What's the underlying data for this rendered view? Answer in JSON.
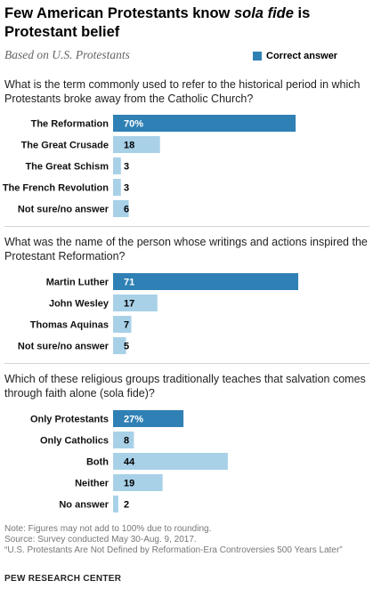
{
  "header": {
    "title_part1": "Few American Protestants know ",
    "title_italic": "sola fide",
    "title_part2": " is Protestant belief",
    "subtitle": "Based on U.S. Protestants",
    "legend_label": "Correct answer"
  },
  "colors": {
    "correct": "#2f80b4",
    "other": "#a8d1e8",
    "value_on_correct": "#ffffff",
    "value_on_other": "#000000"
  },
  "chart_data": [
    {
      "type": "bar",
      "question": "What is the term commonly used to refer to the historical period in which Protestants broke away from the Catholic Church?",
      "categories": [
        "The Reformation",
        "The Great Crusade",
        "The Great Schism",
        "The French Revolution",
        "Not sure/no answer"
      ],
      "values": [
        70,
        18,
        3,
        3,
        6
      ],
      "value_labels": [
        "70%",
        "18",
        "3",
        "3",
        "6"
      ],
      "correct": [
        true,
        false,
        false,
        false,
        false
      ]
    },
    {
      "type": "bar",
      "question": "What was the name of the person whose writings and actions inspired the Protestant Reformation?",
      "categories": [
        "Martin Luther",
        "John Wesley",
        "Thomas Aquinas",
        "Not sure/no answer"
      ],
      "values": [
        71,
        17,
        7,
        5
      ],
      "value_labels": [
        "71",
        "17",
        "7",
        "5"
      ],
      "correct": [
        true,
        false,
        false,
        false
      ]
    },
    {
      "type": "bar",
      "question": "Which of these religious groups traditionally teaches that salvation comes through faith alone (sola fide)?",
      "categories": [
        "Only Protestants",
        "Only Catholics",
        "Both",
        "Neither",
        "No answer"
      ],
      "values": [
        27,
        8,
        44,
        19,
        2
      ],
      "value_labels": [
        "27%",
        "8",
        "44",
        "19",
        "2"
      ],
      "correct": [
        true,
        false,
        false,
        false,
        false
      ]
    }
  ],
  "footer": {
    "note": "Note: Figures may not add to 100% due to rounding.",
    "source": "Source: Survey conducted May 30-Aug. 9, 2017.",
    "report": "“U.S. Protestants Are Not Defined by Reformation-Era Controversies 500 Years Later”",
    "org": "PEW RESEARCH CENTER"
  }
}
